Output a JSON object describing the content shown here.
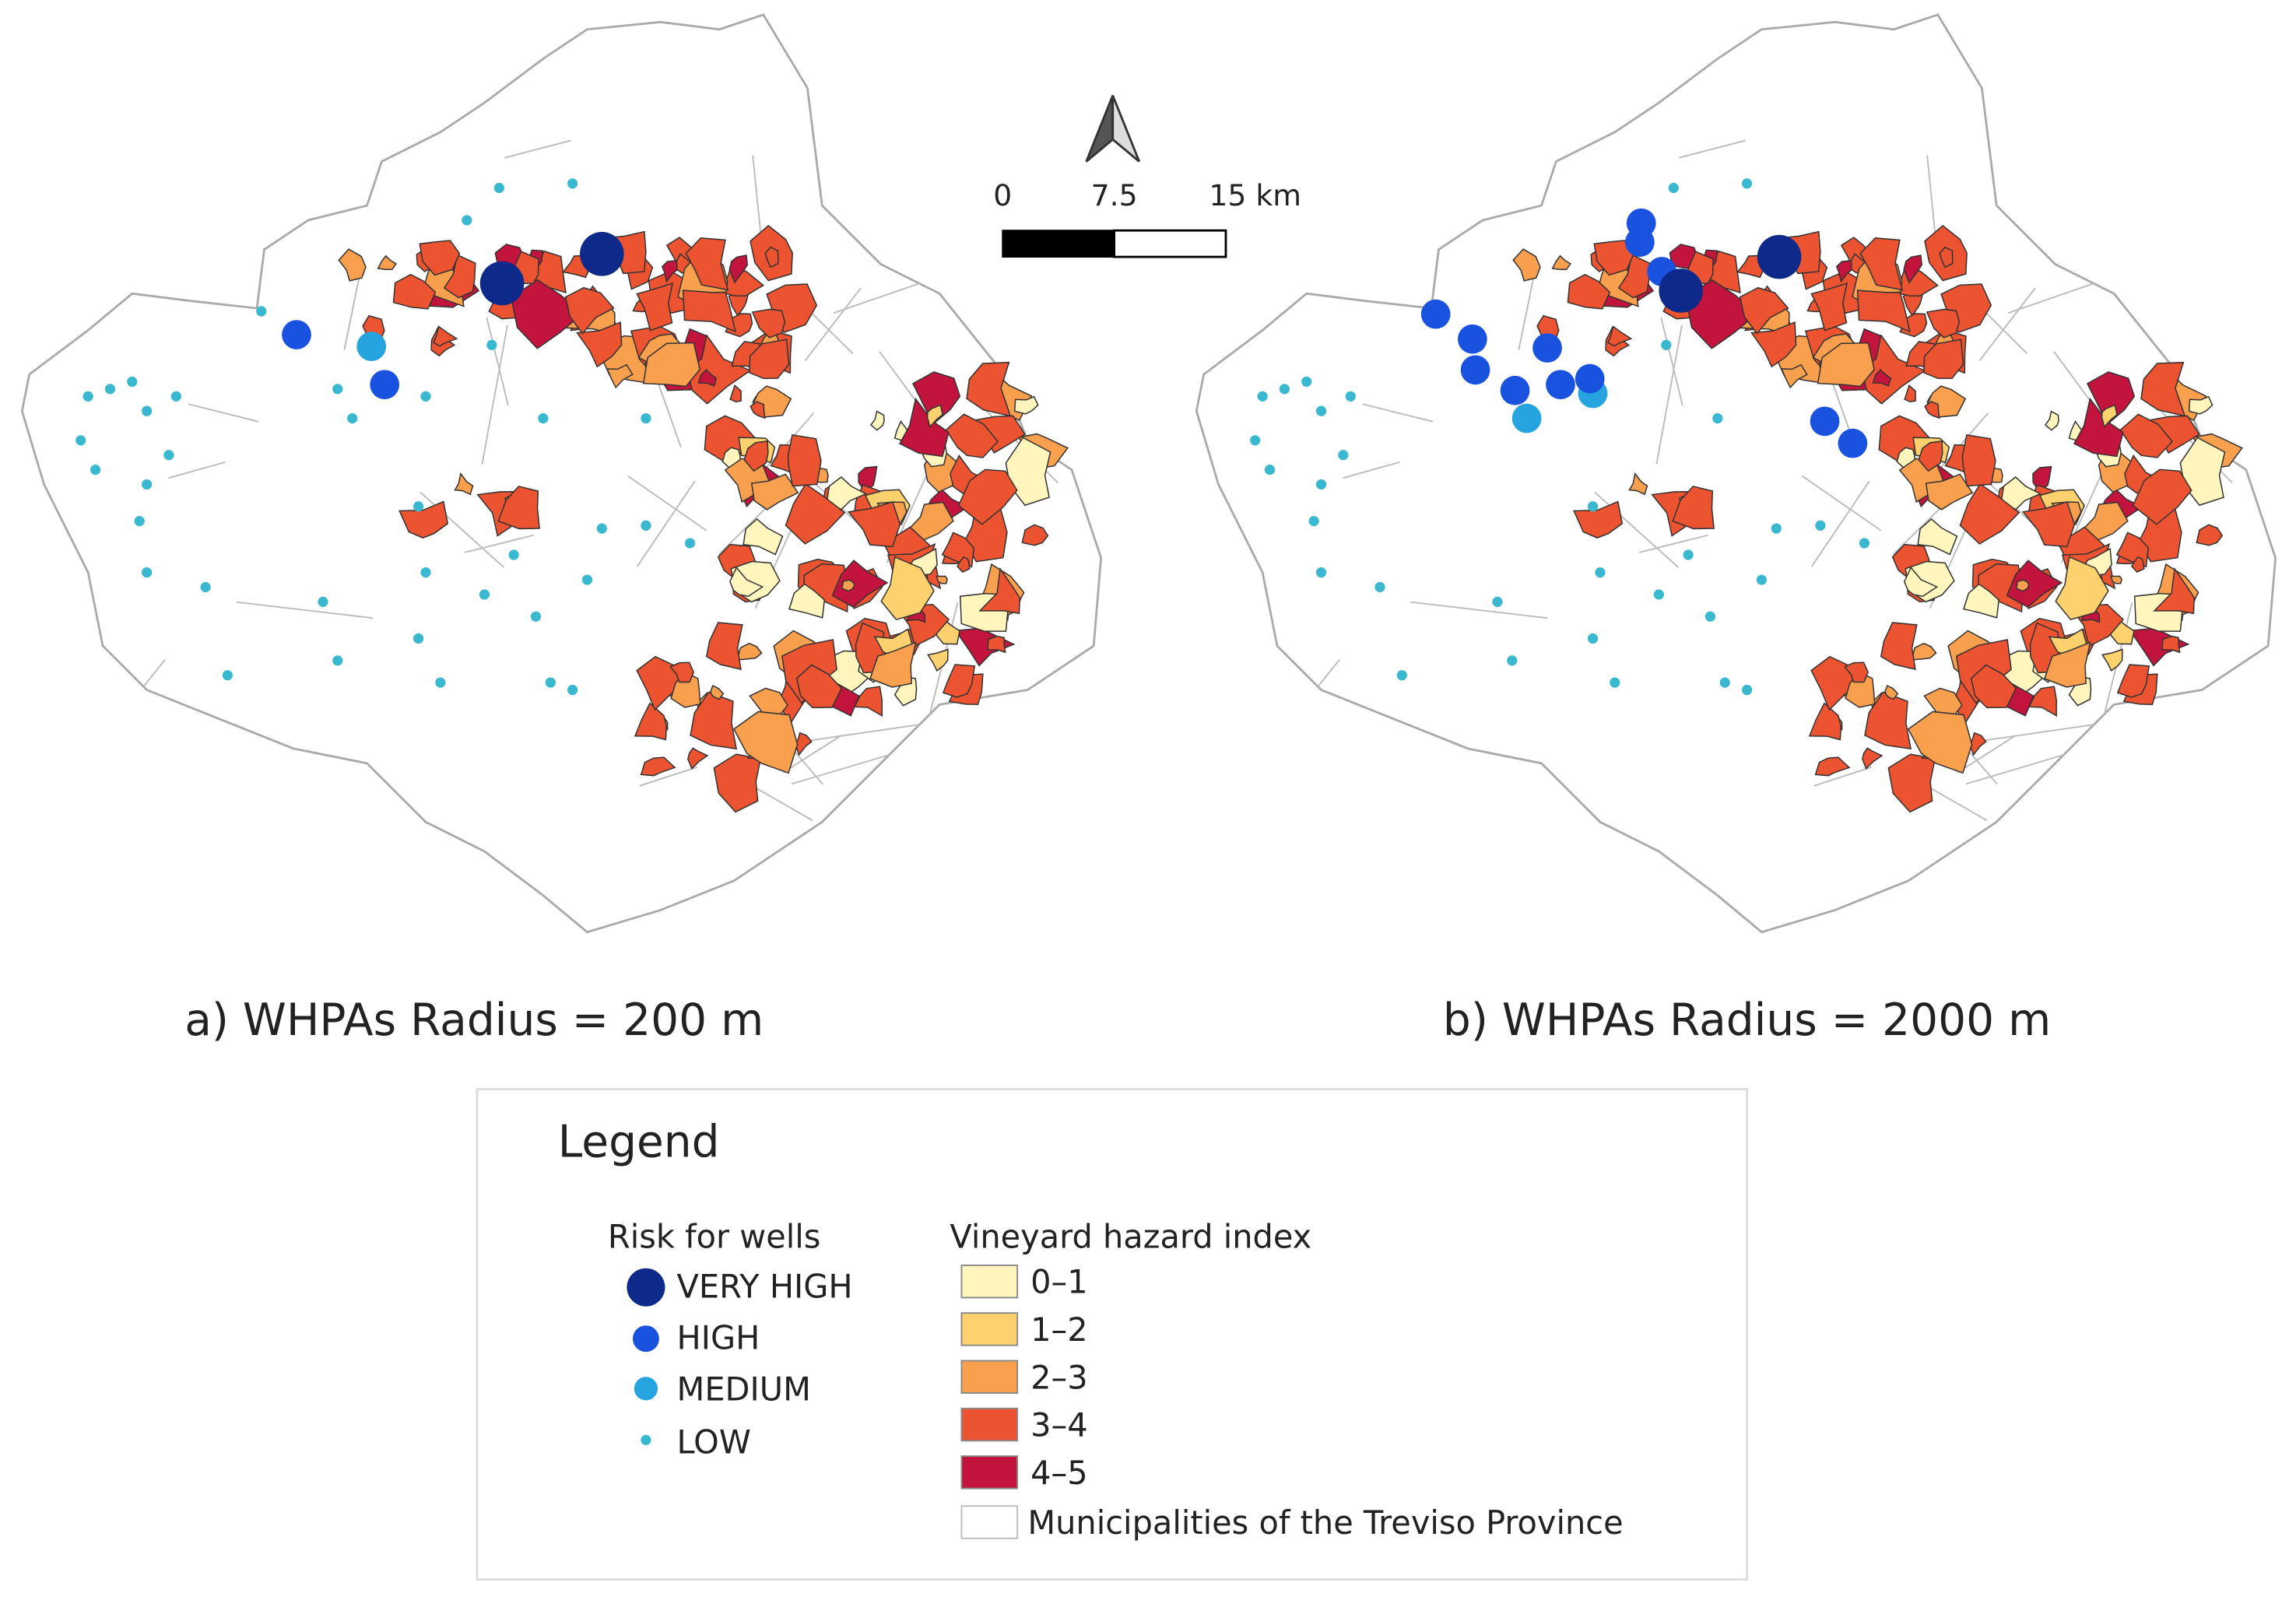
{
  "scale_bar": {
    "labels": [
      "0",
      "7.5",
      "15 km"
    ]
  },
  "panels": [
    {
      "caption": "a) WHPAs Radius = 200 m"
    },
    {
      "caption": "b) WHPAs Radius = 2000 m"
    }
  ],
  "legend": {
    "title": "Legend",
    "risk_title": "Risk for wells",
    "risk_classes": [
      "VERY HIGH",
      "HIGH",
      "MEDIUM",
      "LOW"
    ],
    "hazard_title": "Vineyard hazard index",
    "hazard_classes": [
      "0–1",
      "1–2",
      "2–3",
      "3–4",
      "4–5"
    ],
    "municipalities": "Municipalities of the Treviso Province"
  }
}
